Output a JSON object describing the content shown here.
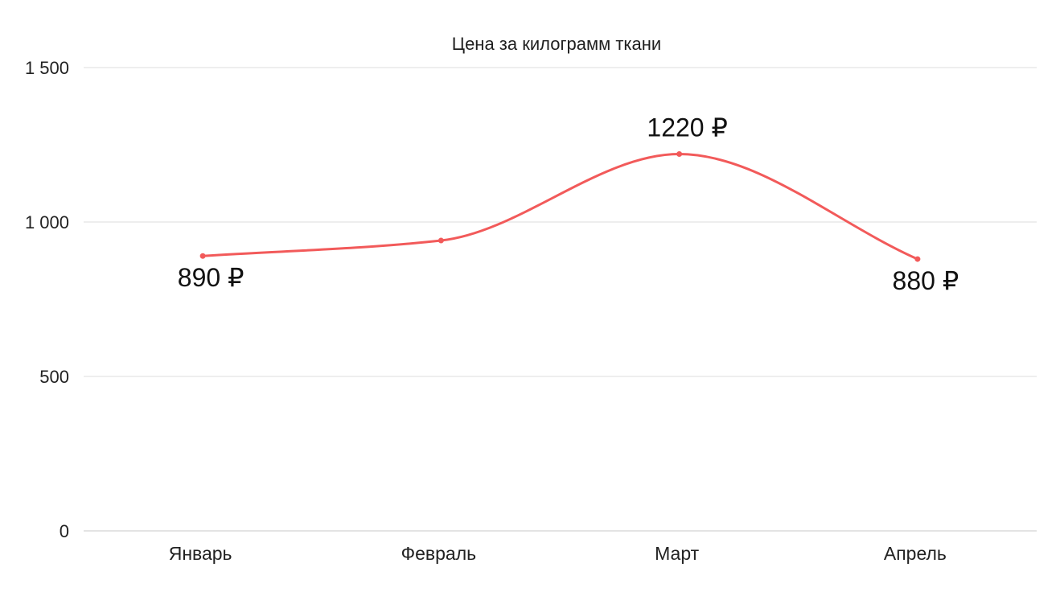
{
  "chart_data": {
    "type": "line",
    "title": "Цена за килограмм ткани",
    "categories": [
      "Январь",
      "Февраль",
      "Март",
      "Апрель"
    ],
    "series": [
      {
        "values": [
          890,
          940,
          1220,
          880
        ],
        "color": "#f25a5a"
      }
    ],
    "y_ticks": [
      0,
      500,
      1000,
      1500
    ],
    "y_tick_labels": [
      "0",
      "500",
      "1 000",
      "1 500"
    ],
    "data_labels": [
      "890 ₽",
      "",
      "1220 ₽",
      "880 ₽"
    ],
    "ylim": [
      0,
      1500
    ],
    "smooth": true,
    "grid": "horizontal",
    "legend": "none",
    "xlabel": "",
    "ylabel": ""
  }
}
